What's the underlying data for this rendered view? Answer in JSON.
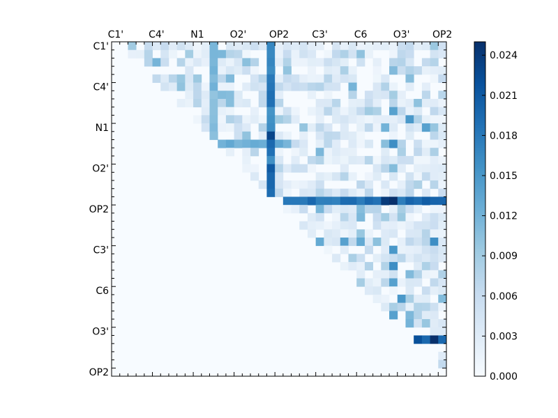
{
  "chart_data": {
    "type": "heatmap",
    "title": "",
    "matrix_size": 41,
    "x_tick_labels": [
      "C1'",
      "C4'",
      "N1",
      "O2'",
      "OP2",
      "C3'",
      "C6",
      "O3'",
      "OP2"
    ],
    "y_tick_labels": [
      "C1'",
      "C4'",
      "N1",
      "O2'",
      "OP2",
      "C3'",
      "C6",
      "O3'",
      "OP2"
    ],
    "label_step": 5,
    "colorbar": {
      "min": 0.0,
      "max": 0.025,
      "ticks": [
        "0.000",
        "0.003",
        "0.006",
        "0.009",
        "0.012",
        "0.015",
        "0.018",
        "0.021",
        "0.024"
      ],
      "tick_values": [
        0.0,
        0.003,
        0.006,
        0.009,
        0.012,
        0.015,
        0.018,
        0.021,
        0.024
      ],
      "colormap": "Blues",
      "color_stops": [
        "#f7fbff",
        "#deebf7",
        "#c6dbef",
        "#9ecae1",
        "#6baed6",
        "#4292c6",
        "#2171b5",
        "#08519c",
        "#08306b"
      ]
    },
    "upper_triangle_only": true,
    "strong_rows": [
      {
        "row": 19,
        "from": 21,
        "to": 40,
        "value": 0.02
      },
      {
        "row": 36,
        "from": 35,
        "to": 40,
        "value": 0.022
      },
      {
        "row": 12,
        "from": 13,
        "to": 20,
        "value": 0.013
      }
    ],
    "strong_columns": [
      {
        "col": 19,
        "from": 0,
        "to": 18,
        "value": 0.019
      },
      {
        "col": 12,
        "from": 0,
        "to": 12,
        "value": 0.012
      }
    ],
    "strong_cells": [
      [
        19,
        34,
        0.025
      ],
      [
        19,
        33,
        0.024
      ],
      [
        36,
        39,
        0.025
      ],
      [
        36,
        37,
        0.022
      ],
      [
        11,
        19,
        0.023
      ],
      [
        15,
        19,
        0.021
      ],
      [
        12,
        34,
        0.016
      ],
      [
        25,
        34,
        0.015
      ],
      [
        27,
        34,
        0.016
      ],
      [
        24,
        28,
        0.014
      ],
      [
        24,
        25,
        0.013
      ],
      [
        24,
        30,
        0.013
      ],
      [
        10,
        38,
        0.014
      ],
      [
        9,
        36,
        0.015
      ],
      [
        8,
        34,
        0.014
      ],
      [
        24,
        39,
        0.016
      ],
      [
        31,
        35,
        0.015
      ],
      [
        33,
        34,
        0.014
      ],
      [
        29,
        34,
        0.014
      ],
      [
        37,
        36,
        0.014
      ]
    ]
  }
}
